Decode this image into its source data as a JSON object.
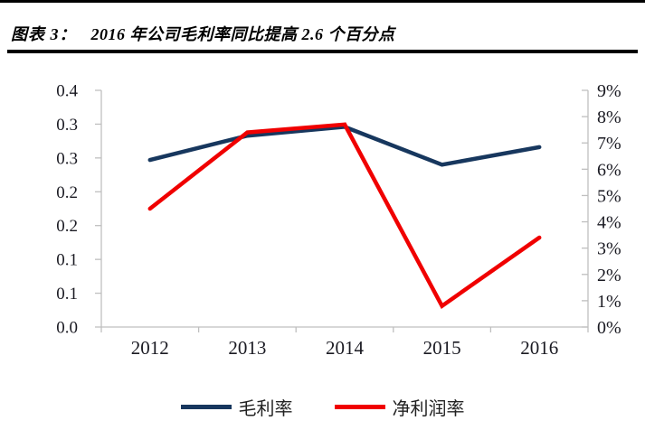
{
  "header": {
    "chart_label": "图表 3：",
    "chart_title": "2016 年公司毛利率同比提高 2.6 个百分点"
  },
  "chart_data": {
    "type": "line",
    "categories": [
      "2012",
      "2013",
      "2014",
      "2015",
      "2016"
    ],
    "series": [
      {
        "key": "gross-margin",
        "name": "毛利率",
        "axis": "left",
        "color": "#17375E",
        "values": [
          0.247,
          0.283,
          0.296,
          0.24,
          0.266
        ]
      },
      {
        "key": "net-profit-margin",
        "name": "净利润率",
        "axis": "right",
        "color": "#F00000",
        "values": [
          4.5,
          7.4,
          7.7,
          0.8,
          3.4
        ]
      }
    ],
    "left_axis": {
      "min": 0,
      "max": 0.35,
      "tick_labels_top_to_bottom": [
        "0.4",
        "0.3",
        "0.3",
        "0.2",
        "0.2",
        "0.1",
        "0.1",
        "0.0"
      ]
    },
    "right_axis": {
      "min": 0,
      "max": 9,
      "unit": "%",
      "tick_labels_top_to_bottom": [
        "9%",
        "8%",
        "7%",
        "6%",
        "5%",
        "4%",
        "3%",
        "2%",
        "1%",
        "0%"
      ]
    },
    "grid": false,
    "legend_position": "bottom",
    "axis_line_color": "#BFBFBF",
    "tick_text_color": "#1a1a22"
  }
}
